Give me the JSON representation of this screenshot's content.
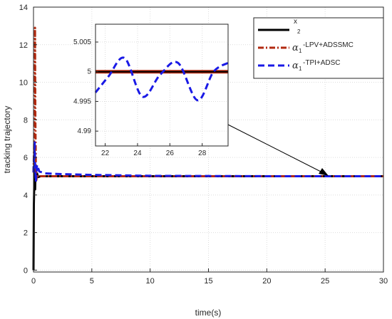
{
  "chart_data": {
    "type": "line",
    "xlabel": "time(s)",
    "ylabel": "tracking trajectory",
    "xlim": [
      0,
      30
    ],
    "ylim": [
      -0.1,
      14
    ],
    "xticks": [
      "0",
      "5",
      "10",
      "15",
      "20",
      "25",
      "30"
    ],
    "yticks": [
      "0",
      "2",
      "4",
      "6",
      "8",
      "10",
      "12",
      "14"
    ],
    "grid": true,
    "legend_position": "top-right",
    "legend": [
      {
        "symbol": "",
        "text": "x",
        "sub": "2",
        "color": "#000000",
        "dash": "solid"
      },
      {
        "symbol": "α",
        "sub": "1",
        "text": "-LPV+ADSSMC",
        "color": "#b22a10",
        "dash": "dashdot"
      },
      {
        "symbol": "α",
        "sub": "1",
        "text": "-TPI+ADSC",
        "color": "#1a1ae6",
        "dash": "dash"
      }
    ],
    "series": [
      {
        "color": "#000000",
        "x": [
          0,
          0.03,
          0.06,
          0.1,
          0.14,
          0.18,
          0.22,
          0.3,
          0.4,
          0.6,
          1,
          2,
          5,
          10,
          20,
          30
        ],
        "y": [
          0,
          3.5,
          4.4,
          6.3,
          4.3,
          5.5,
          4.8,
          5.15,
          4.95,
          5.0,
          5.0,
          5.0,
          5.0,
          5.0,
          5.0,
          5.0
        ]
      },
      {
        "color": "#b22a10",
        "x": [
          0,
          0.05,
          0.1,
          0.13,
          0.16,
          0.2,
          0.25,
          0.3,
          0.4,
          0.6,
          1,
          2,
          5,
          10,
          20,
          30
        ],
        "y": [
          5.2,
          6.5,
          9.0,
          12.9,
          8.0,
          5.6,
          4.8,
          5.1,
          4.95,
          5.0,
          5.0,
          5.0,
          5.0,
          5.0,
          5.0,
          5.0
        ]
      },
      {
        "color": "#1a1ae6",
        "x": [
          0,
          0.05,
          0.1,
          0.14,
          0.2,
          0.3,
          0.5,
          1,
          2,
          3,
          5,
          8,
          10,
          15,
          20,
          25,
          30
        ],
        "y": [
          5.2,
          6.2,
          6.8,
          5.6,
          4.7,
          5.6,
          5.25,
          5.15,
          5.12,
          5.1,
          5.07,
          5.04,
          5.02,
          5.01,
          5.0,
          5.0,
          5.0
        ]
      }
    ],
    "inset": {
      "xlim": [
        21.4,
        29.6
      ],
      "ylim": [
        4.9875,
        5.008
      ],
      "xticks": [
        "22",
        "24",
        "26",
        "28"
      ],
      "yticks": [
        "4.99",
        "4.995",
        "5",
        "5.005"
      ],
      "series": [
        {
          "color": "#b22a10",
          "x": [
            21.4,
            29.6
          ],
          "y": [
            5.0,
            5.0
          ]
        },
        {
          "color": "#000000",
          "x": [
            21.4,
            29.6
          ],
          "y": [
            5.0,
            5.0
          ]
        },
        {
          "color": "#1a1ae6",
          "x": [
            21.4,
            22.2,
            23.2,
            24.3,
            25.4,
            26.5,
            27.7,
            28.7,
            29.6
          ],
          "y": [
            4.9965,
            4.9992,
            5.0023,
            4.9958,
            4.9995,
            5.0015,
            4.9952,
            5.0,
            5.0015
          ]
        }
      ]
    }
  }
}
